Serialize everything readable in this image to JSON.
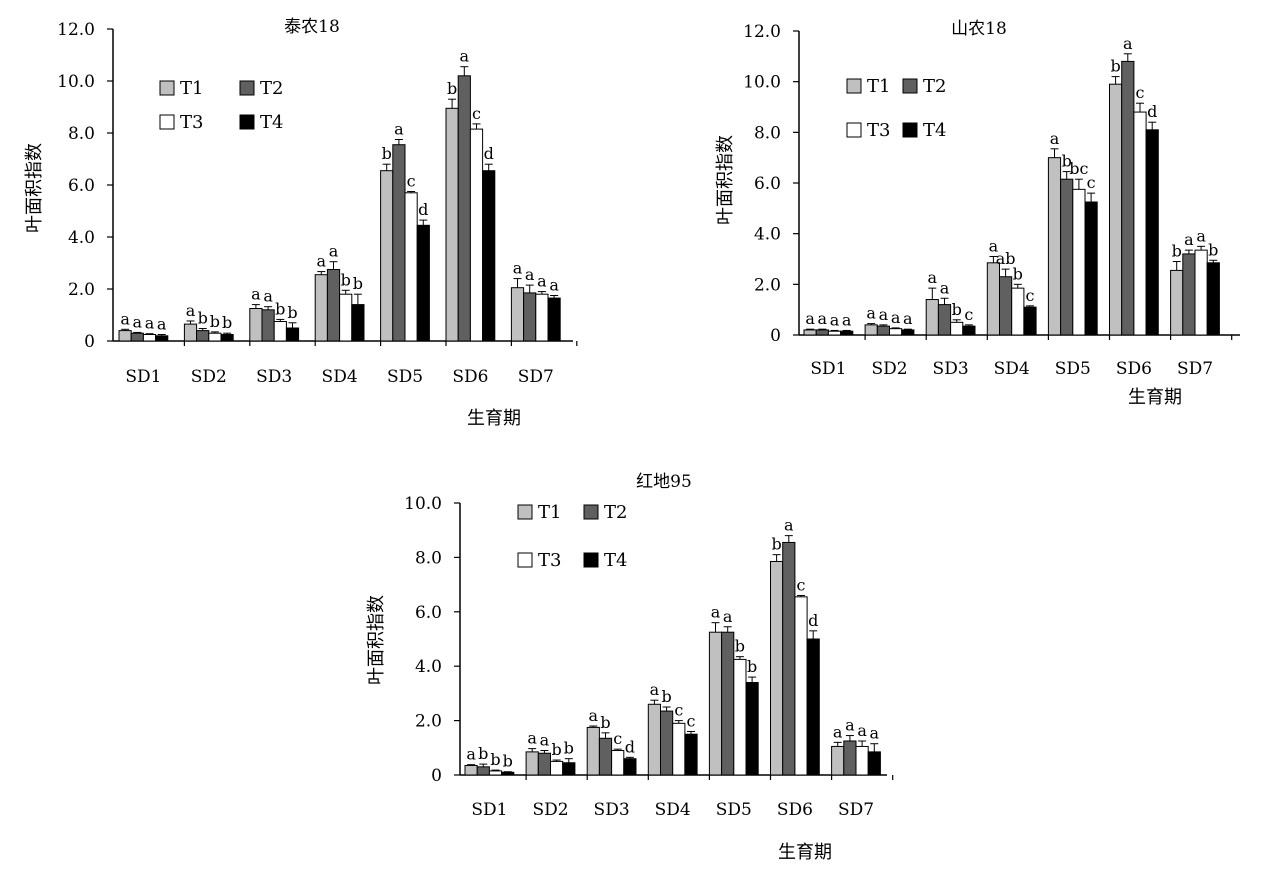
{
  "legend": [
    "T1",
    "T2",
    "T3",
    "T4"
  ],
  "colors": {
    "T1": "#c0c0c0",
    "T2": "#606060",
    "T3": "#ffffff",
    "T4": "#000000",
    "axis": "#000000"
  },
  "chart_data": [
    {
      "type": "bar",
      "title": "泰农18",
      "xlabel": "生育期",
      "ylabel": "叶面积指数",
      "ylim": [
        0,
        12
      ],
      "yticks": [
        "0",
        "2.0",
        "4.0",
        "6.0",
        "8.0",
        "10.0",
        "12.0"
      ],
      "categories": [
        "SD1",
        "SD2",
        "SD3",
        "SD4",
        "SD5",
        "SD6",
        "SD7"
      ],
      "grid": false,
      "legend_position": "top-left",
      "series": [
        {
          "name": "T1",
          "values": [
            0.4,
            0.65,
            1.25,
            2.55,
            6.55,
            8.95,
            2.05
          ],
          "errors": [
            0.05,
            0.12,
            0.15,
            0.12,
            0.25,
            0.35,
            0.35
          ],
          "labels": [
            "a",
            "a",
            "a",
            "a",
            "b",
            "b",
            "a"
          ]
        },
        {
          "name": "T2",
          "values": [
            0.3,
            0.4,
            1.2,
            2.75,
            7.55,
            10.2,
            1.85
          ],
          "errors": [
            0.03,
            0.08,
            0.12,
            0.3,
            0.2,
            0.35,
            0.3
          ],
          "labels": [
            "a",
            "b",
            "a",
            "a",
            "a",
            "a",
            "a"
          ]
        },
        {
          "name": "T3",
          "values": [
            0.25,
            0.3,
            0.75,
            1.8,
            5.7,
            8.15,
            1.8
          ],
          "errors": [
            0.03,
            0.05,
            0.08,
            0.15,
            0.05,
            0.2,
            0.1
          ],
          "labels": [
            "a",
            "b",
            "b",
            "b",
            "c",
            "c",
            "a"
          ]
        },
        {
          "name": "T4",
          "values": [
            0.2,
            0.25,
            0.5,
            1.4,
            4.45,
            6.55,
            1.65
          ],
          "errors": [
            0.05,
            0.05,
            0.2,
            0.4,
            0.2,
            0.25,
            0.1
          ],
          "labels": [
            "a",
            "b",
            "b",
            "b",
            "d",
            "d",
            "a"
          ]
        }
      ]
    },
    {
      "type": "bar",
      "title": "山农18",
      "xlabel": "生育期",
      "ylabel": "叶面积指数",
      "ylim": [
        0,
        12
      ],
      "yticks": [
        "0",
        "2.0",
        "4.0",
        "6.0",
        "8.0",
        "10.0",
        "12.0"
      ],
      "categories": [
        "SD1",
        "SD2",
        "SD3",
        "SD4",
        "SD5",
        "SD6",
        "SD7"
      ],
      "grid": false,
      "legend_position": "top-left",
      "series": [
        {
          "name": "T1",
          "values": [
            0.2,
            0.4,
            1.4,
            2.85,
            7.0,
            9.9,
            2.55
          ],
          "errors": [
            0.03,
            0.05,
            0.45,
            0.25,
            0.35,
            0.3,
            0.35
          ],
          "labels": [
            "a",
            "a",
            "a",
            "a",
            "a",
            "b",
            "b"
          ]
        },
        {
          "name": "T2",
          "values": [
            0.2,
            0.35,
            1.2,
            2.3,
            6.15,
            10.8,
            3.2
          ],
          "errors": [
            0.03,
            0.05,
            0.25,
            0.3,
            0.3,
            0.3,
            0.15
          ],
          "labels": [
            "a",
            "a",
            "a",
            "ab",
            "b",
            "a",
            "a"
          ]
        },
        {
          "name": "T3",
          "values": [
            0.15,
            0.25,
            0.5,
            1.85,
            5.75,
            8.8,
            3.35
          ],
          "errors": [
            0.03,
            0.03,
            0.1,
            0.15,
            0.4,
            0.35,
            0.15
          ],
          "labels": [
            "a",
            "a",
            "b",
            "b",
            "bc",
            "c",
            "a"
          ]
        },
        {
          "name": "T4",
          "values": [
            0.15,
            0.2,
            0.35,
            1.1,
            5.25,
            8.1,
            2.85
          ],
          "errors": [
            0.03,
            0.03,
            0.05,
            0.05,
            0.35,
            0.3,
            0.1
          ],
          "labels": [
            "a",
            "a",
            "c",
            "c",
            "c",
            "d",
            "b"
          ]
        }
      ]
    },
    {
      "type": "bar",
      "title": "红地95",
      "xlabel": "生育期",
      "ylabel": "叶面积指数",
      "ylim": [
        0,
        10
      ],
      "yticks": [
        "0",
        "2.0",
        "4.0",
        "6.0",
        "8.0",
        "10.0"
      ],
      "categories": [
        "SD1",
        "SD2",
        "SD3",
        "SD4",
        "SD5",
        "SD6",
        "SD7"
      ],
      "grid": false,
      "legend_position": "top-left",
      "series": [
        {
          "name": "T1",
          "values": [
            0.35,
            0.85,
            1.75,
            2.6,
            5.25,
            7.85,
            1.05
          ],
          "errors": [
            0.03,
            0.12,
            0.05,
            0.15,
            0.35,
            0.25,
            0.15
          ],
          "labels": [
            "a",
            "a",
            "a",
            "a",
            "a",
            "b",
            "a"
          ]
        },
        {
          "name": "T2",
          "values": [
            0.3,
            0.8,
            1.35,
            2.35,
            5.25,
            8.55,
            1.25
          ],
          "errors": [
            0.1,
            0.1,
            0.2,
            0.15,
            0.2,
            0.25,
            0.2
          ],
          "labels": [
            "b",
            "a",
            "b",
            "b",
            "a",
            "a",
            "a"
          ]
        },
        {
          "name": "T3",
          "values": [
            0.15,
            0.5,
            0.9,
            1.9,
            4.25,
            6.55,
            1.05
          ],
          "errors": [
            0.03,
            0.05,
            0.05,
            0.1,
            0.1,
            0.05,
            0.2
          ],
          "labels": [
            "b",
            "b",
            "c",
            "c",
            "b",
            "c",
            "a"
          ]
        },
        {
          "name": "T4",
          "values": [
            0.1,
            0.45,
            0.6,
            1.5,
            3.4,
            5.0,
            0.85
          ],
          "errors": [
            0.02,
            0.15,
            0.05,
            0.1,
            0.2,
            0.3,
            0.3
          ],
          "labels": [
            "b",
            "b",
            "d",
            "c",
            "b",
            "d",
            "a"
          ]
        }
      ]
    }
  ]
}
